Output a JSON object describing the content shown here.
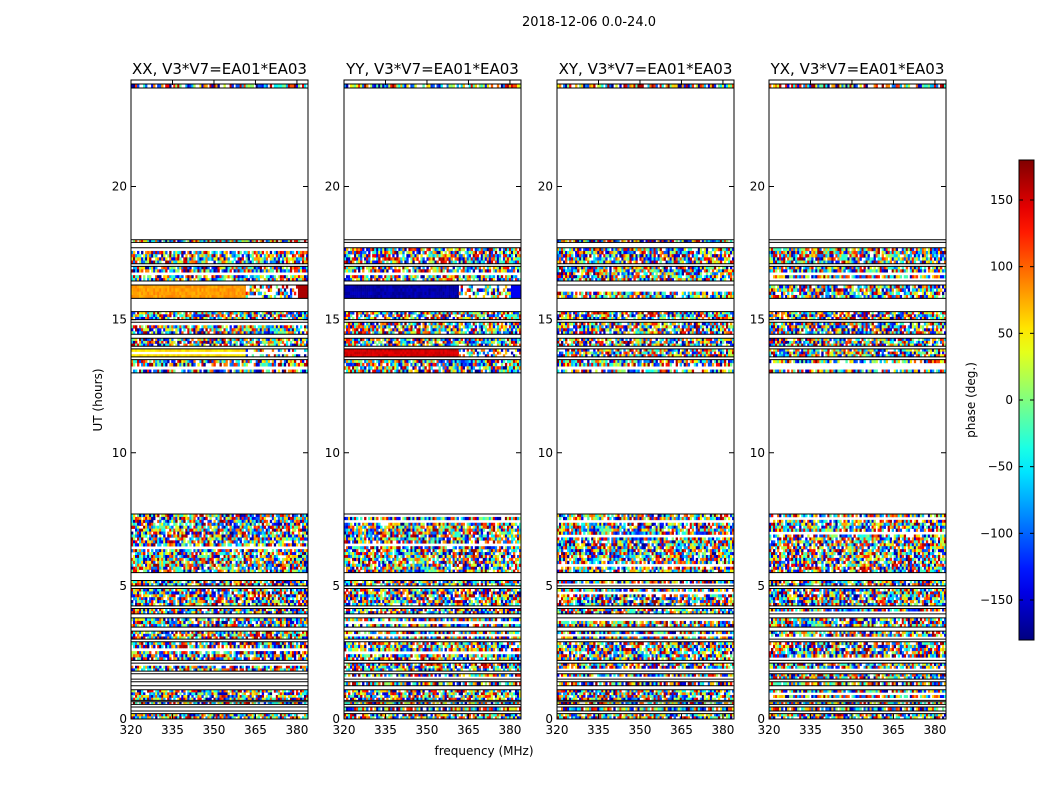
{
  "figure": {
    "suptitle": "2018-12-06 0.0-24.0",
    "xlabel": "frequency (MHz)",
    "ylabel": "UT (hours)",
    "colorbar_label": "phase (deg.)"
  },
  "chart_data": [
    {
      "type": "heatmap",
      "title": "XX, V3*V7=EA01*EA03",
      "x_ticks": [
        "320",
        "335",
        "350",
        "365",
        "380"
      ],
      "y_ticks": [
        "0",
        "5",
        "10",
        "15",
        "20"
      ],
      "xlim": [
        320,
        384
      ],
      "ylim": [
        0,
        24
      ],
      "z_range": [
        -180,
        180
      ],
      "coherent_phase_band": {
        "ut": [
          15.8,
          16.3
        ],
        "phase": 80,
        "end_phase": 165
      },
      "coherent_phase_band_2": {
        "ut": [
          13.6,
          13.9
        ],
        "phase": 55
      }
    },
    {
      "type": "heatmap",
      "title": "YY, V3*V7=EA01*EA03",
      "x_ticks": [
        "320",
        "335",
        "350",
        "365",
        "380"
      ],
      "y_ticks": [
        "0",
        "5",
        "10",
        "15",
        "20"
      ],
      "xlim": [
        320,
        384
      ],
      "ylim": [
        0,
        24
      ],
      "z_range": [
        -180,
        180
      ],
      "coherent_phase_band": {
        "ut": [
          15.8,
          16.3
        ],
        "phase": -165,
        "end_phase": -140
      },
      "coherent_phase_band_2": {
        "ut": [
          13.6,
          13.9
        ],
        "phase": 150
      }
    },
    {
      "type": "heatmap",
      "title": "XY, V3*V7=EA01*EA03",
      "x_ticks": [
        "320",
        "335",
        "350",
        "365",
        "380"
      ],
      "y_ticks": [
        "0",
        "5",
        "10",
        "15",
        "20"
      ],
      "xlim": [
        320,
        384
      ],
      "ylim": [
        0,
        24
      ],
      "z_range": [
        -180,
        180
      ]
    },
    {
      "type": "heatmap",
      "title": "YX, V3*V7=EA01*EA03",
      "x_ticks": [
        "320",
        "335",
        "350",
        "365",
        "380"
      ],
      "y_ticks": [
        "0",
        "5",
        "10",
        "15",
        "20"
      ],
      "xlim": [
        320,
        384
      ],
      "ylim": [
        0,
        24
      ],
      "z_range": [
        -180,
        180
      ]
    }
  ],
  "data_rows_ut": [
    [
      0.0,
      0.2
    ],
    [
      0.3,
      0.45
    ],
    [
      0.55,
      0.65
    ],
    [
      0.7,
      1.1
    ],
    [
      1.25,
      1.4
    ],
    [
      1.5,
      1.7
    ],
    [
      1.8,
      2.1
    ],
    [
      2.2,
      2.9
    ],
    [
      3.0,
      3.3
    ],
    [
      3.45,
      3.8
    ],
    [
      3.95,
      4.15
    ],
    [
      4.25,
      4.9
    ],
    [
      5.0,
      5.2
    ],
    [
      5.5,
      7.7
    ],
    [
      13.0,
      13.5
    ],
    [
      13.6,
      13.9
    ],
    [
      14.0,
      14.3
    ],
    [
      14.45,
      14.9
    ],
    [
      15.0,
      15.3
    ],
    [
      15.8,
      16.3
    ],
    [
      16.45,
      17.0
    ],
    [
      17.1,
      17.7
    ],
    [
      17.9,
      18.0
    ],
    [
      23.7,
      23.85
    ],
    [
      24.0,
      24.1
    ]
  ],
  "colorbar": {
    "ticks": [
      "150",
      "100",
      "50",
      "0",
      "−50",
      "−100",
      "−150"
    ],
    "tick_values": [
      150,
      100,
      50,
      0,
      -50,
      -100,
      -150
    ],
    "range": [
      -180,
      180
    ]
  }
}
